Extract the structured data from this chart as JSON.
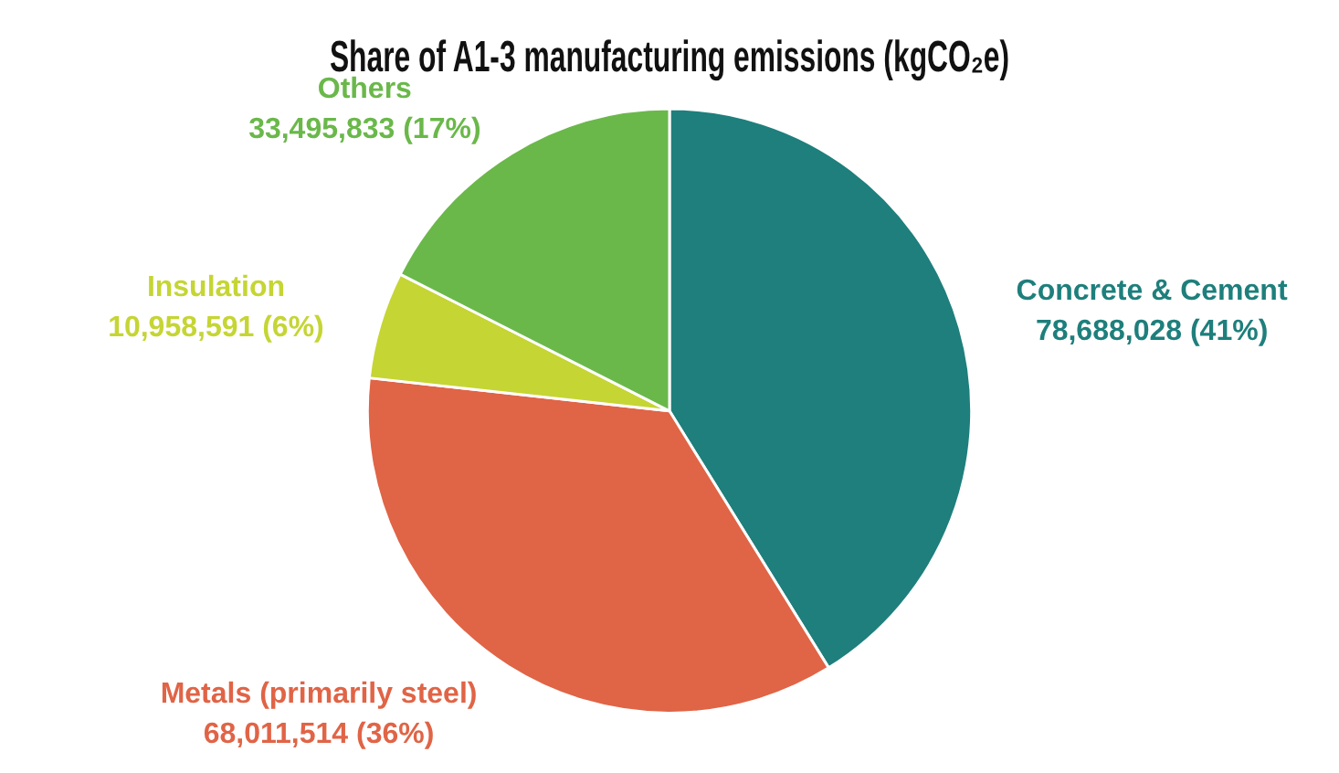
{
  "chart_data": {
    "type": "pie",
    "title": "Share of A1-3 manufacturing emissions (kgCO₂e)",
    "categories": [
      "Concrete & Cement",
      "Metals (primarily steel)",
      "Insulation",
      "Others"
    ],
    "values": [
      78688028,
      68011514,
      10958591,
      33495833
    ],
    "colors": [
      "#1e7f7c",
      "#e06446",
      "#c5d534",
      "#6ab84a"
    ],
    "value_labels": [
      "78,688,028 (41%)",
      "68,011,514 (36%)",
      "10,958,591 (6%)",
      "33,495,833 (17%)"
    ]
  }
}
